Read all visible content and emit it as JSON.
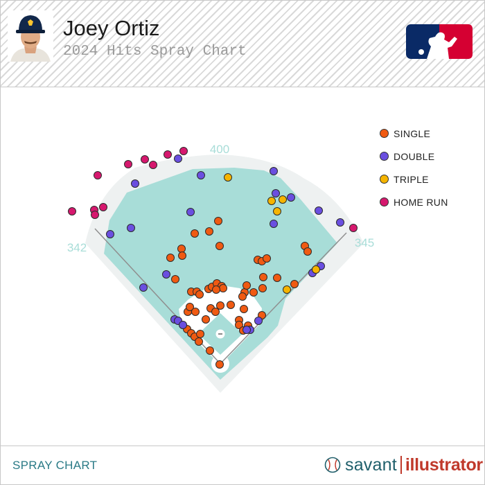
{
  "header": {
    "player_name": "Joey Ortiz",
    "subtitle": "2024 Hits Spray Chart"
  },
  "footer": {
    "title": "SPRAY CHART",
    "brand_primary": "savant",
    "brand_secondary": "illustrator"
  },
  "legend": [
    {
      "label": "SINGLE",
      "color": "#f05a12"
    },
    {
      "label": "DOUBLE",
      "color": "#6a4fe0"
    },
    {
      "label": "TRIPLE",
      "color": "#f5b400"
    },
    {
      "label": "HOME RUN",
      "color": "#d6186e"
    }
  ],
  "chart_data": {
    "type": "scatter",
    "title": "2024 Hits Spray Chart",
    "xlabel": "",
    "ylabel": "",
    "fences": {
      "left": "342",
      "center": "400",
      "right": "345"
    },
    "units": "image-grid-700",
    "series": [
      {
        "name": "SINGLE",
        "points": [
          [
            315,
            319
          ],
          [
            302,
            334
          ],
          [
            281,
            337
          ],
          [
            317,
            355
          ],
          [
            262,
            359
          ],
          [
            263,
            369
          ],
          [
            246,
            372
          ],
          [
            253,
            403
          ],
          [
            372,
            375
          ],
          [
            378,
            377
          ],
          [
            385,
            373
          ],
          [
            440,
            355
          ],
          [
            444,
            363
          ],
          [
            380,
            400
          ],
          [
            400,
            401
          ],
          [
            425,
            410
          ],
          [
            366,
            422
          ],
          [
            379,
            416
          ],
          [
            353,
            422
          ],
          [
            356,
            412
          ],
          [
            276,
            421
          ],
          [
            284,
            421
          ],
          [
            288,
            425
          ],
          [
            301,
            417
          ],
          [
            306,
            414
          ],
          [
            313,
            409
          ],
          [
            320,
            413
          ],
          [
            322,
            416
          ],
          [
            312,
            418
          ],
          [
            271,
            450
          ],
          [
            274,
            443
          ],
          [
            282,
            450
          ],
          [
            304,
            445
          ],
          [
            318,
            441
          ],
          [
            333,
            440
          ],
          [
            350,
            428
          ],
          [
            352,
            446
          ],
          [
            378,
            455
          ],
          [
            311,
            450
          ],
          [
            345,
            462
          ],
          [
            345,
            469
          ],
          [
            358,
            470
          ],
          [
            351,
            477
          ],
          [
            297,
            461
          ],
          [
            270,
            475
          ],
          [
            276,
            481
          ],
          [
            281,
            486
          ],
          [
            289,
            482
          ],
          [
            287,
            493
          ],
          [
            303,
            506
          ],
          [
            317,
            526
          ]
        ]
      },
      {
        "name": "DOUBLE",
        "points": [
          [
            257,
            229
          ],
          [
            290,
            253
          ],
          [
            395,
            247
          ],
          [
            195,
            265
          ],
          [
            398,
            279
          ],
          [
            420,
            285
          ],
          [
            275,
            306
          ],
          [
            460,
            304
          ],
          [
            491,
            321
          ],
          [
            395,
            323
          ],
          [
            189,
            329
          ],
          [
            159,
            338
          ],
          [
            240,
            396
          ],
          [
            207,
            415
          ],
          [
            451,
            394
          ],
          [
            463,
            384
          ],
          [
            252,
            461
          ],
          [
            257,
            463
          ],
          [
            264,
            469
          ],
          [
            373,
            463
          ],
          [
            361,
            476
          ],
          [
            356,
            476
          ]
        ]
      },
      {
        "name": "TRIPLE",
        "points": [
          [
            329,
            256
          ],
          [
            392,
            290
          ],
          [
            408,
            288
          ],
          [
            400,
            305
          ],
          [
            414,
            418
          ],
          [
            456,
            389
          ]
        ]
      },
      {
        "name": "HOME RUN",
        "points": [
          [
            242,
            223
          ],
          [
            265,
            218
          ],
          [
            209,
            230
          ],
          [
            221,
            238
          ],
          [
            185,
            237
          ],
          [
            141,
            253
          ],
          [
            104,
            305
          ],
          [
            136,
            303
          ],
          [
            137,
            310
          ],
          [
            149,
            299
          ],
          [
            510,
            329
          ]
        ]
      }
    ]
  }
}
